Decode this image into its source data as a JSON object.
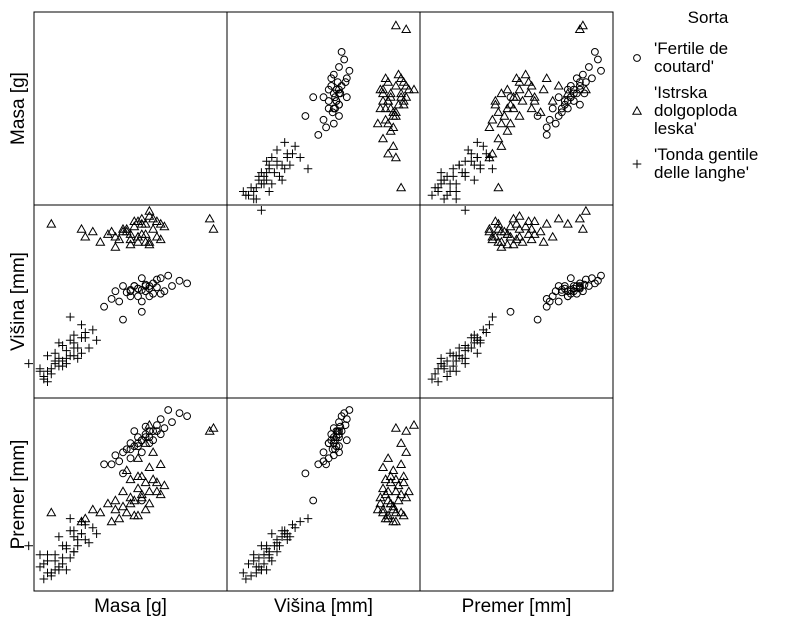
{
  "chart_data": {
    "type": "scatter",
    "subtype": "scatterplot-matrix",
    "variables": [
      "Masa [g]",
      "Višina [mm]",
      "Premer [mm]"
    ],
    "ranges": [
      [
        1.0,
        3.4
      ],
      [
        12.5,
        19.5
      ],
      [
        14.5,
        20.5
      ]
    ],
    "grid": false,
    "legend": {
      "position": "right",
      "title": "Sorta",
      "entries": [
        {
          "lines": [
            "'Fertile de",
            "coutard'"
          ],
          "marker": "circle",
          "series": 0
        },
        {
          "lines": [
            "'Istrska",
            "dolgoploda",
            "leska'"
          ],
          "marker": "triangle",
          "series": 1
        },
        {
          "lines": [
            "'Tonda gentile",
            "delle langhe'"
          ],
          "marker": "plus",
          "series": 2
        }
      ]
    },
    "series": [
      {
        "name": "'Fertile de coutard'",
        "marker": "circle",
        "points": [
          [
            2.7,
            17.0,
            20.3
          ],
          [
            2.85,
            16.8,
            20.2
          ],
          [
            2.95,
            16.7,
            20.1
          ],
          [
            2.6,
            16.9,
            20.0
          ],
          [
            2.75,
            16.6,
            19.9
          ],
          [
            2.55,
            16.85,
            19.8
          ],
          [
            2.65,
            16.4,
            19.7
          ],
          [
            2.5,
            16.7,
            19.6
          ],
          [
            2.45,
            16.5,
            19.6
          ],
          [
            2.4,
            16.6,
            19.5
          ],
          [
            2.4,
            16.4,
            19.4
          ],
          [
            2.35,
            16.9,
            19.3
          ],
          [
            2.3,
            16.5,
            19.4
          ],
          [
            2.5,
            16.3,
            19.3
          ],
          [
            2.3,
            16.2,
            19.2
          ],
          [
            2.25,
            16.6,
            19.1
          ],
          [
            2.2,
            16.45,
            19.0
          ],
          [
            2.1,
            16.6,
            18.9
          ],
          [
            2.2,
            16.2,
            18.7
          ],
          [
            2.35,
            16.0,
            18.9
          ],
          [
            2.45,
            16.2,
            19.2
          ],
          [
            2.6,
            16.3,
            19.5
          ],
          [
            2.0,
            16.4,
            18.8
          ],
          [
            1.95,
            16.1,
            18.5
          ],
          [
            2.05,
            16.0,
            18.6
          ],
          [
            2.25,
            16.6,
            19.6
          ],
          [
            2.35,
            16.45,
            19.3
          ],
          [
            2.15,
            16.35,
            19.0
          ],
          [
            2.4,
            16.65,
            19.75
          ],
          [
            2.55,
            16.55,
            19.6
          ],
          [
            2.2,
            16.4,
            19.2
          ],
          [
            2.3,
            16.5,
            19.1
          ],
          [
            2.45,
            16.6,
            19.4
          ],
          [
            1.85,
            15.8,
            18.5
          ],
          [
            2.1,
            15.3,
            18.2
          ],
          [
            2.35,
            15.6,
            17.3
          ]
        ]
      },
      {
        "name": "'Istrska dolgoploda leska'",
        "marker": "triangle",
        "points": [
          [
            3.3,
            18.8,
            19.7
          ],
          [
            3.25,
            19.2,
            19.6
          ],
          [
            2.45,
            19.5,
            19.8
          ],
          [
            2.4,
            19.0,
            19.2
          ],
          [
            2.3,
            18.5,
            18.7
          ],
          [
            2.5,
            19.2,
            18.9
          ],
          [
            2.6,
            19.0,
            18.5
          ],
          [
            2.45,
            18.3,
            18.4
          ],
          [
            2.15,
            18.7,
            18.3
          ],
          [
            2.3,
            19.1,
            18.1
          ],
          [
            2.5,
            18.8,
            18.0
          ],
          [
            2.2,
            18.4,
            18.0
          ],
          [
            2.65,
            18.9,
            17.8
          ],
          [
            2.4,
            18.6,
            17.9
          ],
          [
            2.3,
            18.3,
            17.7
          ],
          [
            2.1,
            18.8,
            17.6
          ],
          [
            2.35,
            19.0,
            17.5
          ],
          [
            2.55,
            18.5,
            17.6
          ],
          [
            2.2,
            18.2,
            17.4
          ],
          [
            2.45,
            19.3,
            17.6
          ],
          [
            2.2,
            18.6,
            17.2
          ],
          [
            2.0,
            18.5,
            17.3
          ],
          [
            2.6,
            18.4,
            17.5
          ],
          [
            2.35,
            19.2,
            17.4
          ],
          [
            2.1,
            18.7,
            17.1
          ],
          [
            2.25,
            18.9,
            17.3
          ],
          [
            2.4,
            18.3,
            17.0
          ],
          [
            2.0,
            18.1,
            17.0
          ],
          [
            1.9,
            18.6,
            17.2
          ],
          [
            2.15,
            18.8,
            16.9
          ],
          [
            2.3,
            18.5,
            16.8
          ],
          [
            1.8,
            18.3,
            16.9
          ],
          [
            2.05,
            18.4,
            16.7
          ],
          [
            1.95,
            18.7,
            16.6
          ],
          [
            2.25,
            19.1,
            16.8
          ],
          [
            2.45,
            18.2,
            17.2
          ],
          [
            1.7,
            18.7,
            17.0
          ],
          [
            1.6,
            18.5,
            16.7
          ],
          [
            1.55,
            18.8,
            16.6
          ],
          [
            1.15,
            19.0,
            16.9
          ],
          [
            2.55,
            19.1,
            17.9
          ],
          [
            2.35,
            18.6,
            18.1
          ]
        ]
      },
      {
        "name": "'Tonda gentile delle langhe'",
        "marker": "plus",
        "points": [
          [
            1.45,
            14.4,
            16.3
          ],
          [
            1.55,
            14.0,
            16.2
          ],
          [
            1.6,
            14.6,
            16.0
          ],
          [
            1.5,
            13.8,
            15.8
          ],
          [
            1.45,
            14.2,
            15.6
          ],
          [
            1.4,
            13.9,
            15.4
          ],
          [
            1.3,
            13.7,
            15.2
          ],
          [
            1.25,
            13.5,
            15.1
          ],
          [
            1.2,
            13.6,
            15.0
          ],
          [
            1.15,
            13.4,
            14.9
          ],
          [
            1.1,
            13.3,
            15.3
          ],
          [
            1.05,
            13.1,
            15.2
          ],
          [
            1.0,
            13.3,
            15.5
          ],
          [
            1.25,
            13.8,
            15.0
          ],
          [
            1.35,
            14.1,
            15.8
          ],
          [
            1.6,
            14.8,
            16.5
          ],
          [
            1.75,
            14.5,
            16.2
          ],
          [
            1.45,
            14.7,
            16.1
          ],
          [
            1.55,
            15.1,
            16.6
          ],
          [
            1.65,
            14.2,
            15.9
          ],
          [
            1.2,
            14.0,
            15.3
          ],
          [
            1.35,
            13.6,
            15.0
          ],
          [
            1.1,
            13.9,
            15.5
          ],
          [
            1.3,
            14.3,
            15.8
          ],
          [
            1.4,
            14.5,
            16.3
          ],
          [
            0.85,
            13.6,
            15.8
          ],
          [
            1.05,
            13.0,
            14.7
          ],
          [
            1.1,
            12.9,
            14.9
          ],
          [
            1.15,
            13.2,
            14.8
          ],
          [
            1.45,
            13.9,
            15.6
          ],
          [
            1.55,
            14.6,
            16.2
          ],
          [
            1.7,
            14.9,
            16.4
          ],
          [
            1.3,
            13.5,
            15.4
          ],
          [
            1.0,
            13.4,
            15.1
          ],
          [
            1.2,
            13.7,
            15.5
          ],
          [
            1.5,
            14.2,
            16.0
          ],
          [
            1.35,
            13.8,
            15.7
          ],
          [
            1.25,
            14.4,
            16.1
          ],
          [
            1.4,
            15.4,
            16.7
          ]
        ]
      }
    ]
  }
}
